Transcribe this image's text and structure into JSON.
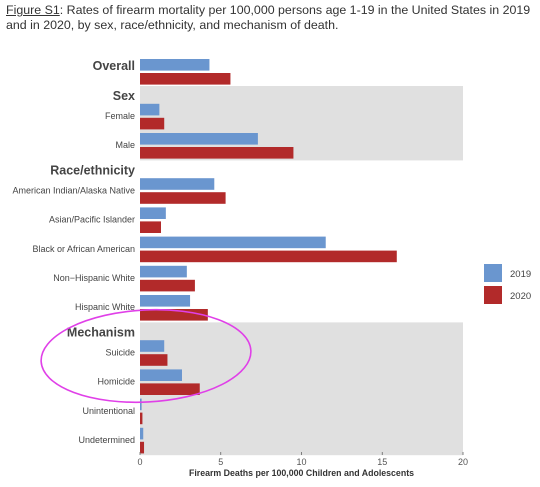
{
  "caption": {
    "figure_label": "Figure S1",
    "text": ": Rates of firearm mortality per 100,000 persons age 1-19 in the United States in 2019 and in 2020, by sex, race/ethnicity, and mechanism of death."
  },
  "chart_data": {
    "type": "bar",
    "orientation": "horizontal",
    "title": "",
    "xlabel": "Firearm Deaths per 100,000 Children and Adolescents",
    "ylabel": "",
    "xlim": [
      0,
      20
    ],
    "xticks": [
      "0",
      "5",
      "10",
      "15",
      "20"
    ],
    "grid": false,
    "legend_position": "right",
    "series": [
      {
        "name": "2019",
        "color": "#6a96cf"
      },
      {
        "name": "2020",
        "color": "#b22a2a"
      }
    ],
    "groups": [
      {
        "name": "Overall",
        "shaded": false,
        "categories": [
          {
            "label": "",
            "values": [
              4.3,
              5.6
            ]
          }
        ]
      },
      {
        "name": "Sex",
        "shaded": true,
        "categories": [
          {
            "label": "Female",
            "values": [
              1.2,
              1.5
            ]
          },
          {
            "label": "Male",
            "values": [
              7.3,
              9.5
            ]
          }
        ]
      },
      {
        "name": "Race/ethnicity",
        "shaded": false,
        "categories": [
          {
            "label": "American Indian/Alaska Native",
            "values": [
              4.6,
              5.3
            ]
          },
          {
            "label": "Asian/Pacific Islander",
            "values": [
              1.6,
              1.3
            ]
          },
          {
            "label": "Black or African American",
            "values": [
              11.5,
              15.9
            ]
          },
          {
            "label": "Non−Hispanic White",
            "values": [
              2.9,
              3.4
            ]
          },
          {
            "label": "Hispanic White",
            "values": [
              3.1,
              4.2
            ]
          }
        ]
      },
      {
        "name": "Mechanism",
        "shaded": true,
        "categories": [
          {
            "label": "Suicide",
            "values": [
              1.5,
              1.7
            ]
          },
          {
            "label": "Homicide",
            "values": [
              2.6,
              3.7
            ]
          },
          {
            "label": "Unintentional",
            "values": [
              0.1,
              0.15
            ]
          },
          {
            "label": "Undetermined",
            "values": [
              0.2,
              0.25
            ]
          }
        ]
      }
    ],
    "annotations": [
      {
        "type": "ellipse",
        "color": "#e040e8",
        "encloses": "Mechanism: Suicide, Homicide"
      }
    ]
  }
}
